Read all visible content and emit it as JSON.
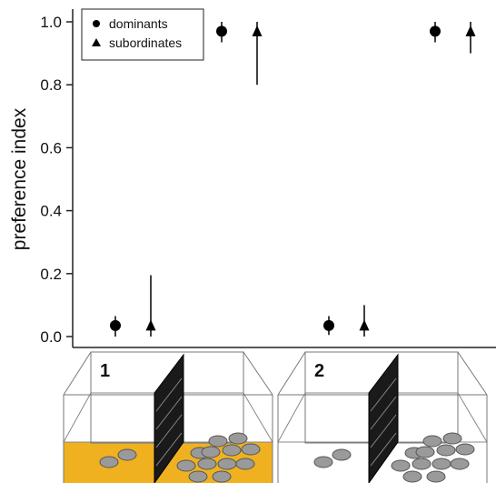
{
  "chart_data": {
    "type": "scatter",
    "ylabel": "preference index",
    "ylim": [
      0,
      1
    ],
    "yticks": [
      "0.0",
      "0.2",
      "0.4",
      "0.6",
      "0.8",
      "1.0"
    ],
    "legend": {
      "placement": "top-left"
    },
    "series": [
      {
        "name": "dominants",
        "marker": "circle",
        "points": [
          {
            "x": 1,
            "y": 0.035,
            "lo": 0.0,
            "hi": 0.065
          },
          {
            "x": 3,
            "y": 0.97,
            "lo": 0.935,
            "hi": 1.0
          },
          {
            "x": 5,
            "y": 0.035,
            "lo": 0.005,
            "hi": 0.065
          },
          {
            "x": 7,
            "y": 0.97,
            "lo": 0.935,
            "hi": 1.0
          }
        ]
      },
      {
        "name": "subordinates",
        "marker": "triangle",
        "points": [
          {
            "x": 2,
            "y": 0.035,
            "lo": 0.0,
            "hi": 0.195
          },
          {
            "x": 4,
            "y": 0.97,
            "lo": 0.8,
            "hi": 1.0
          },
          {
            "x": 6,
            "y": 0.035,
            "lo": 0.0,
            "hi": 0.1
          },
          {
            "x": 8,
            "y": 0.97,
            "lo": 0.9,
            "hi": 1.0
          }
        ]
      }
    ],
    "panels": [
      {
        "label": "1",
        "floor_color": "#f0b121"
      },
      {
        "label": "2",
        "floor_color": "#ffffff"
      }
    ]
  }
}
